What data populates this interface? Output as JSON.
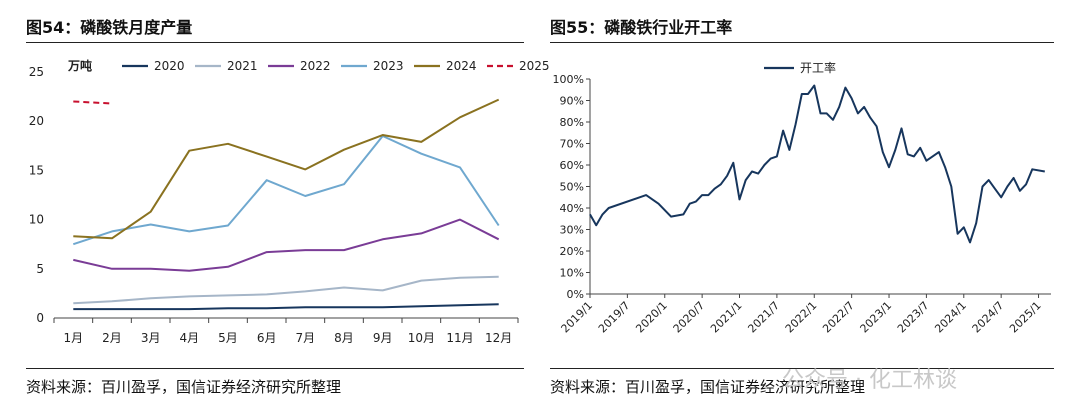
{
  "left_panel": {
    "title": "图54：磷酸铁月度产量",
    "source": "资料来源：百川盈孚，国信证券经济研究所整理"
  },
  "right_panel": {
    "title": "图55：磷酸铁行业开工率",
    "source": "资料来源：百川盈孚，国信证券经济研究所整理"
  },
  "watermark": "公众号 · 化工林谈",
  "chart_data": [
    {
      "type": "line",
      "title": "磷酸铁月度产量",
      "unit_label": "万吨",
      "categories": [
        "1月",
        "2月",
        "3月",
        "4月",
        "5月",
        "6月",
        "7月",
        "8月",
        "9月",
        "10月",
        "11月",
        "12月"
      ],
      "y_ticks": [
        "0",
        "5",
        "10",
        "15",
        "20",
        "25"
      ],
      "ylim": [
        0,
        25
      ],
      "grid": false,
      "legend_position": "top",
      "series": [
        {
          "name": "2020",
          "color": "#17365d",
          "dash": "solid",
          "values": [
            0.9,
            0.9,
            0.9,
            0.9,
            1.0,
            1.0,
            1.1,
            1.1,
            1.1,
            1.2,
            1.3,
            1.4
          ]
        },
        {
          "name": "2021",
          "color": "#a6b6c8",
          "dash": "solid",
          "values": [
            1.5,
            1.7,
            2.0,
            2.2,
            2.3,
            2.4,
            2.7,
            3.1,
            2.8,
            3.8,
            4.1,
            4.2
          ]
        },
        {
          "name": "2022",
          "color": "#7a3c96",
          "dash": "solid",
          "values": [
            5.9,
            5.0,
            5.0,
            4.8,
            5.2,
            6.7,
            6.9,
            6.9,
            8.0,
            8.6,
            10.0,
            8.0
          ]
        },
        {
          "name": "2023",
          "color": "#6fa8cf",
          "dash": "solid",
          "values": [
            7.5,
            8.8,
            9.5,
            8.8,
            9.4,
            14.0,
            12.4,
            13.6,
            18.5,
            16.7,
            15.3,
            9.4
          ]
        },
        {
          "name": "2024",
          "color": "#8a7220",
          "dash": "solid",
          "values": [
            8.3,
            8.1,
            10.8,
            17.0,
            17.7,
            16.4,
            15.1,
            17.1,
            18.6,
            17.9,
            20.4,
            22.2
          ]
        },
        {
          "name": "2025",
          "color": "#c8102e",
          "dash": "dashed",
          "values": [
            22.0,
            21.8,
            null,
            null,
            null,
            null,
            null,
            null,
            null,
            null,
            null,
            null
          ]
        }
      ]
    },
    {
      "type": "line",
      "title": "磷酸铁行业开工率",
      "y_ticks": [
        "0%",
        "10%",
        "20%",
        "30%",
        "40%",
        "50%",
        "60%",
        "70%",
        "80%",
        "90%",
        "100%"
      ],
      "ylim": [
        0,
        100
      ],
      "x_ticks": [
        "2019/1",
        "2019/7",
        "2020/1",
        "2020/7",
        "2021/1",
        "2021/7",
        "2022/1",
        "2022/7",
        "2023/1",
        "2023/7",
        "2024/1",
        "2024/7",
        "2025/1"
      ],
      "grid": false,
      "legend_position": "top",
      "series": [
        {
          "name": "开工率",
          "color": "#17365d",
          "points": [
            [
              "2019/1",
              37
            ],
            [
              "2019/2",
              32
            ],
            [
              "2019/3",
              37
            ],
            [
              "2019/4",
              40
            ],
            [
              "2019/10",
              46
            ],
            [
              "2019/12",
              42
            ],
            [
              "2020/2",
              36
            ],
            [
              "2020/4",
              37
            ],
            [
              "2020/5",
              42
            ],
            [
              "2020/6",
              43
            ],
            [
              "2020/7",
              46
            ],
            [
              "2020/8",
              46
            ],
            [
              "2020/9",
              49
            ],
            [
              "2020/10",
              51
            ],
            [
              "2020/11",
              55
            ],
            [
              "2020/12",
              61
            ],
            [
              "2021/1",
              44
            ],
            [
              "2021/2",
              53
            ],
            [
              "2021/3",
              57
            ],
            [
              "2021/4",
              56
            ],
            [
              "2021/5",
              60
            ],
            [
              "2021/6",
              63
            ],
            [
              "2021/7",
              64
            ],
            [
              "2021/8",
              76
            ],
            [
              "2021/9",
              67
            ],
            [
              "2021/10",
              79
            ],
            [
              "2021/11",
              93
            ],
            [
              "2021/12",
              93
            ],
            [
              "2022/1",
              97
            ],
            [
              "2022/2",
              84
            ],
            [
              "2022/3",
              84
            ],
            [
              "2022/4",
              81
            ],
            [
              "2022/5",
              87
            ],
            [
              "2022/6",
              96
            ],
            [
              "2022/7",
              91
            ],
            [
              "2022/8",
              84
            ],
            [
              "2022/9",
              87
            ],
            [
              "2022/10",
              82
            ],
            [
              "2022/11",
              78
            ],
            [
              "2022/12",
              66
            ],
            [
              "2023/1",
              59
            ],
            [
              "2023/2",
              67
            ],
            [
              "2023/3",
              77
            ],
            [
              "2023/4",
              65
            ],
            [
              "2023/5",
              64
            ],
            [
              "2023/6",
              68
            ],
            [
              "2023/7",
              62
            ],
            [
              "2023/8",
              64
            ],
            [
              "2023/9",
              66
            ],
            [
              "2023/10",
              59
            ],
            [
              "2023/11",
              50
            ],
            [
              "2023/12",
              28
            ],
            [
              "2024/1",
              31
            ],
            [
              "2024/2",
              24
            ],
            [
              "2024/3",
              33
            ],
            [
              "2024/4",
              50
            ],
            [
              "2024/5",
              53
            ],
            [
              "2024/6",
              49
            ],
            [
              "2024/7",
              45
            ],
            [
              "2024/8",
              50
            ],
            [
              "2024/9",
              54
            ],
            [
              "2024/10",
              48
            ],
            [
              "2024/11",
              51
            ],
            [
              "2024/12",
              58
            ],
            [
              "2025/2",
              57
            ]
          ]
        }
      ]
    }
  ]
}
